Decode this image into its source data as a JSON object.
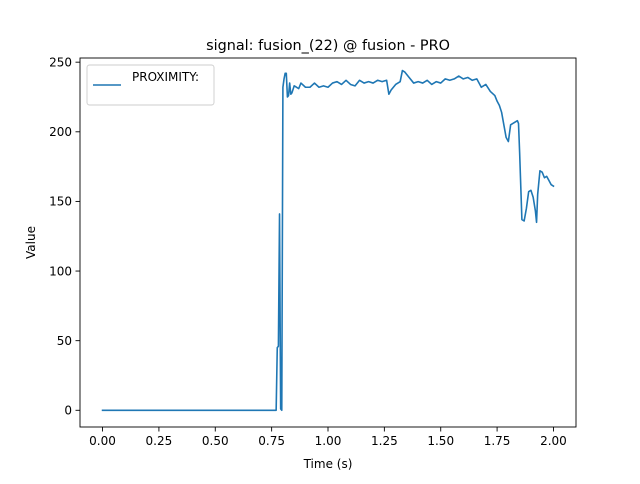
{
  "chart_data": {
    "type": "line",
    "title": "signal: fusion_(22) @ fusion - PRO",
    "xlabel": "Time (s)",
    "ylabel": "Value",
    "xlim": [
      -0.1,
      2.1
    ],
    "ylim": [
      -12,
      253
    ],
    "xticks": [
      0.0,
      0.25,
      0.5,
      0.75,
      1.0,
      1.25,
      1.5,
      1.75,
      2.0
    ],
    "xtick_labels": [
      "0.00",
      "0.25",
      "0.50",
      "0.75",
      "1.00",
      "1.25",
      "1.50",
      "1.75",
      "2.00"
    ],
    "yticks": [
      0,
      50,
      100,
      150,
      200,
      250
    ],
    "ytick_labels": [
      "0",
      "50",
      "100",
      "150",
      "200",
      "250"
    ],
    "grid": false,
    "legend_position": "upper-left",
    "series": [
      {
        "name": "PROXIMITY:",
        "color": "#1f77b4",
        "x": [
          0.0,
          0.76,
          0.77,
          0.775,
          0.78,
          0.785,
          0.79,
          0.795,
          0.8,
          0.805,
          0.81,
          0.815,
          0.82,
          0.825,
          0.83,
          0.835,
          0.84,
          0.85,
          0.86,
          0.87,
          0.88,
          0.9,
          0.92,
          0.94,
          0.96,
          0.98,
          1.0,
          1.02,
          1.04,
          1.06,
          1.08,
          1.1,
          1.12,
          1.14,
          1.16,
          1.18,
          1.2,
          1.22,
          1.24,
          1.26,
          1.27,
          1.28,
          1.3,
          1.32,
          1.33,
          1.34,
          1.36,
          1.38,
          1.4,
          1.42,
          1.44,
          1.46,
          1.48,
          1.5,
          1.52,
          1.54,
          1.56,
          1.58,
          1.6,
          1.62,
          1.64,
          1.66,
          1.68,
          1.7,
          1.72,
          1.74,
          1.75,
          1.76,
          1.77,
          1.78,
          1.79,
          1.8,
          1.81,
          1.82,
          1.83,
          1.84,
          1.845,
          1.85,
          1.86,
          1.87,
          1.88,
          1.89,
          1.9,
          1.91,
          1.92,
          1.925,
          1.93,
          1.94,
          1.95,
          1.96,
          1.97,
          1.98,
          1.99,
          2.0
        ],
        "values": [
          0,
          0,
          0,
          45,
          46,
          141,
          1,
          0,
          232,
          238,
          242,
          242,
          225,
          226,
          235,
          227,
          228,
          233,
          232,
          231,
          235,
          232,
          232,
          235,
          232,
          233,
          232,
          235,
          236,
          234,
          237,
          234,
          233,
          237,
          235,
          236,
          235,
          237,
          236,
          237,
          227,
          230,
          234,
          236,
          244,
          243,
          239,
          235,
          236,
          235,
          237,
          234,
          236,
          235,
          238,
          237,
          238,
          240,
          238,
          239,
          237,
          238,
          232,
          234,
          229,
          226,
          222,
          219,
          214,
          205,
          196,
          193,
          205,
          206,
          207,
          208,
          206,
          185,
          137,
          136,
          145,
          157,
          158,
          153,
          143,
          135,
          155,
          172,
          171,
          167,
          168,
          165,
          162,
          161
        ]
      }
    ]
  }
}
